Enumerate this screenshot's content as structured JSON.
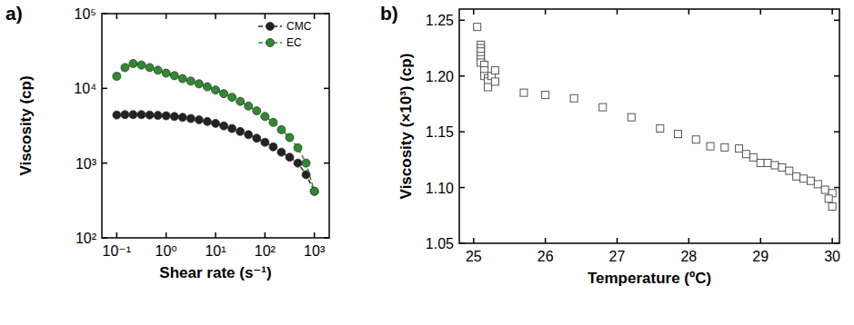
{
  "chart_data": [
    {
      "type": "line",
      "title": "a)",
      "x_label": "Shear rate (s⁻¹)",
      "y_label": "Viscosity (cp)",
      "log": true,
      "legend": "upper right",
      "grid": false,
      "xlim": [
        0.05,
        2000
      ],
      "ylim": [
        100,
        100000
      ],
      "xticks": [
        {
          "value": 0.1,
          "label": "10⁻¹"
        },
        {
          "value": 1,
          "label": "10⁰"
        },
        {
          "value": 10,
          "label": "10¹"
        },
        {
          "value": 100,
          "label": "10²"
        },
        {
          "value": 1000,
          "label": "10³"
        }
      ],
      "yticks": [
        {
          "value": 100,
          "label": "10²"
        },
        {
          "value": 1000,
          "label": "10³"
        },
        {
          "value": 10000,
          "label": "10⁴"
        },
        {
          "value": 100000,
          "label": "10⁵"
        }
      ],
      "x": [
        0.1,
        0.147,
        0.215,
        0.316,
        0.464,
        0.681,
        1,
        1.47,
        2.15,
        3.16,
        4.64,
        6.81,
        10,
        14.7,
        21.5,
        31.6,
        46.4,
        68.1,
        100,
        147,
        215,
        316,
        464,
        681,
        1000
      ],
      "series": [
        {
          "name": "CMC",
          "color": "#222222",
          "marker": "circle",
          "line_style": "dashed",
          "values": [
            4400,
            4450,
            4450,
            4450,
            4400,
            4350,
            4300,
            4200,
            4100,
            3950,
            3800,
            3600,
            3400,
            3150,
            2900,
            2650,
            2400,
            2150,
            1900,
            1650,
            1400,
            1200,
            1000,
            700,
            420
          ]
        },
        {
          "name": "EC",
          "color": "#2e8b2e",
          "marker": "circle",
          "line_style": "dashed",
          "values": [
            14500,
            19000,
            21500,
            20500,
            19000,
            17500,
            16000,
            14800,
            13500,
            12500,
            11500,
            10500,
            9500,
            8500,
            7600,
            6700,
            5800,
            5000,
            4200,
            3500,
            2800,
            2200,
            1600,
            1000,
            420
          ]
        }
      ]
    },
    {
      "type": "scatter",
      "title": "b)",
      "x_label": "Temperature (ºC)",
      "y_label": "Viscosity (×10³) (cp)",
      "grid": false,
      "xlim": [
        24.8,
        30.1
      ],
      "ylim": [
        1.05,
        1.26
      ],
      "xticks": [
        25,
        26,
        27,
        28,
        29,
        30
      ],
      "yticks": [
        1.05,
        {
          "value": 1.1,
          "label": "1.10"
        },
        1.15,
        {
          "value": 1.2,
          "label": "1.20"
        },
        1.25
      ],
      "x": [
        25.05,
        25.1,
        25.1,
        25.1,
        25.1,
        25.1,
        25.1,
        25.15,
        25.15,
        25.15,
        25.2,
        25.2,
        25.2,
        25.25,
        25.3,
        25.3,
        25.7,
        26.0,
        26.4,
        26.8,
        27.2,
        27.6,
        27.85,
        28.1,
        28.3,
        28.5,
        28.7,
        28.8,
        28.9,
        29.0,
        29.1,
        29.2,
        29.3,
        29.4,
        29.5,
        29.6,
        29.7,
        29.8,
        29.9,
        30.0,
        29.95,
        30.0
      ],
      "series": [
        {
          "name": "Viscosity",
          "color": "#555555",
          "marker": "open-square",
          "values": [
            1.244,
            1.228,
            1.225,
            1.222,
            1.218,
            1.215,
            1.212,
            1.21,
            1.205,
            1.2,
            1.198,
            1.195,
            1.19,
            1.2,
            1.195,
            1.205,
            1.185,
            1.183,
            1.18,
            1.172,
            1.163,
            1.153,
            1.148,
            1.143,
            1.137,
            1.136,
            1.135,
            1.13,
            1.127,
            1.122,
            1.122,
            1.12,
            1.118,
            1.115,
            1.11,
            1.108,
            1.106,
            1.103,
            1.098,
            1.095,
            1.09,
            1.083
          ]
        }
      ]
    }
  ]
}
